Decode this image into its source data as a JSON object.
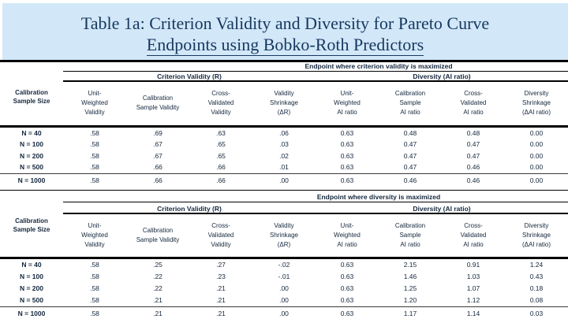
{
  "slide": {
    "title_line1": "Table 1a: Criterion Validity and Diversity for Pareto Curve",
    "title_line2": "Endpoints using Bobko-Roth Predictors",
    "colors": {
      "slide_background": "#d2e8f9",
      "title_text": "#17375e",
      "table_text": "#14273d",
      "rule_lines": "#000000"
    }
  },
  "table": {
    "row_header": "Calibration\nSample Size",
    "group1_label": "Criterion Validity (R)",
    "group2_label": "Diversity (AI ratio)",
    "col_headers": [
      "Unit-\nWeighted\nValidity",
      "Calibration\nSample Validity",
      "Cross-\nValidated\nValidity",
      "Validity\nShrinkage\n(ΔR)",
      "Unit-\nWeighted\nAI ratio",
      "Calibration\nSample\nAI ratio",
      "Cross-\nValidated\nAI ratio",
      "Diversity\nShrinkage\n(ΔAI ratio)"
    ],
    "sections": [
      {
        "endpoint_label": "Endpoint where criterion validity is maximized",
        "rows": [
          {
            "label": "N = 40",
            "values": [
              ".58",
              ".69",
              ".63",
              ".06",
              "0.63",
              "0.48",
              "0.48",
              "0.00"
            ]
          },
          {
            "label": "N = 100",
            "values": [
              ".58",
              ".67",
              ".65",
              ".03",
              "0.63",
              "0.47",
              "0.47",
              "0.00"
            ]
          },
          {
            "label": "N = 200",
            "values": [
              ".58",
              ".67",
              ".65",
              ".02",
              "0.63",
              "0.47",
              "0.47",
              "0.00"
            ]
          },
          {
            "label": "N = 500",
            "values": [
              ".58",
              ".66",
              ".66",
              ".01",
              "0.63",
              "0.47",
              "0.46",
              "0.00"
            ]
          },
          {
            "label": "N = 1000",
            "values": [
              ".58",
              ".66",
              ".66",
              ".00",
              "0.63",
              "0.46",
              "0.46",
              "0.00"
            ]
          }
        ]
      },
      {
        "endpoint_label": "Endpoint where diversity is maximized",
        "rows": [
          {
            "label": "N = 40",
            "values": [
              ".58",
              ".25",
              ".27",
              "-.02",
              "0.63",
              "2.15",
              "0.91",
              "1.24"
            ]
          },
          {
            "label": "N = 100",
            "values": [
              ".58",
              ".22",
              ".23",
              "-.01",
              "0.63",
              "1.46",
              "1.03",
              "0.43"
            ]
          },
          {
            "label": "N = 200",
            "values": [
              ".58",
              ".22",
              ".21",
              ".00",
              "0.63",
              "1.25",
              "1.07",
              "0.18"
            ]
          },
          {
            "label": "N = 500",
            "values": [
              ".58",
              ".21",
              ".21",
              ".00",
              "0.63",
              "1.20",
              "1.12",
              "0.08"
            ]
          },
          {
            "label": "N = 1000",
            "values": [
              ".58",
              ".21",
              ".21",
              ".00",
              "0.63",
              "1.17",
              "1.14",
              "0.03"
            ]
          }
        ]
      }
    ]
  }
}
